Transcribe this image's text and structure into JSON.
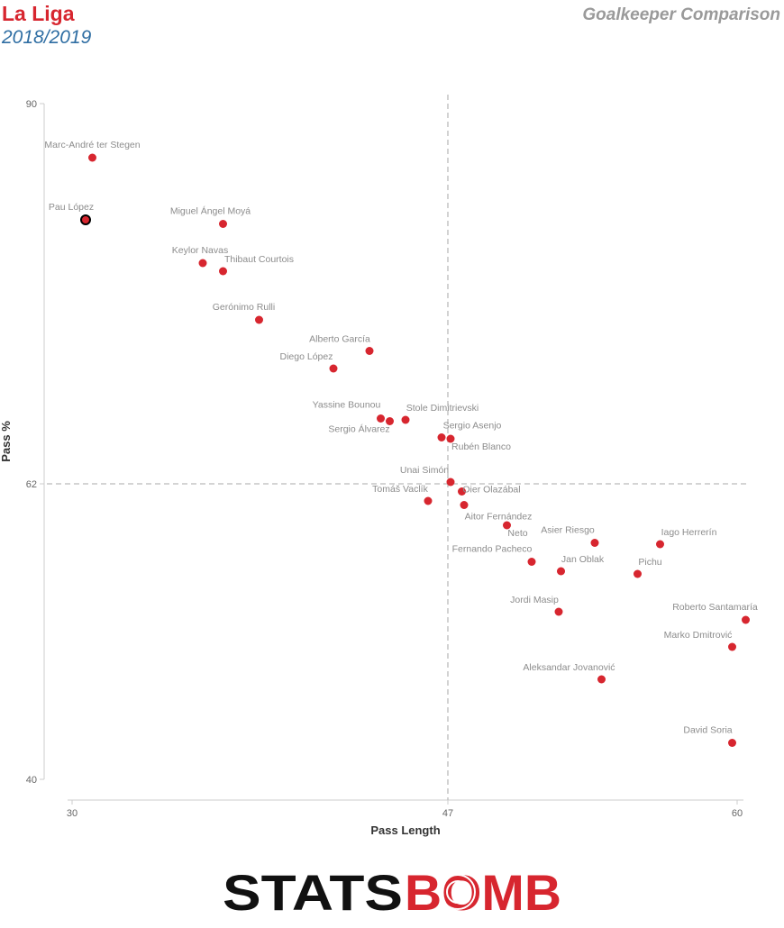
{
  "header": {
    "league": "La Liga",
    "season": "2018/2019",
    "subtitle": "Goalkeeper Comparison"
  },
  "logo": {
    "left": "STATS",
    "right": "BOMB"
  },
  "colors": {
    "accent": "#d7262f",
    "season": "#2f6ea3",
    "label": "#8c8c8c",
    "axis": "#cccccc"
  },
  "chart_data": {
    "type": "scatter",
    "title": "Goalkeeper Comparison",
    "xlabel": "Pass Length",
    "ylabel": "Pass %",
    "xlim": [
      30,
      60
    ],
    "ylim": [
      40,
      90
    ],
    "xticks": [
      30,
      47,
      60
    ],
    "yticks": [
      40,
      62,
      90
    ],
    "reference_lines": {
      "x": 47,
      "y": 62
    },
    "grid": false,
    "points": [
      {
        "name": "Marc-André ter Stegen",
        "x": 31.1,
        "y": 86.0
      },
      {
        "name": "Pau López",
        "x": 30.8,
        "y": 81.4,
        "highlight": true
      },
      {
        "name": "Miguel Ángel Moyá",
        "x": 36.9,
        "y": 81.1
      },
      {
        "name": "Keylor Navas",
        "x": 36.0,
        "y": 78.2
      },
      {
        "name": "Thibaut Courtois",
        "x": 36.9,
        "y": 77.6
      },
      {
        "name": "Gerónimo Rulli",
        "x": 38.5,
        "y": 74.0
      },
      {
        "name": "Alberto García",
        "x": 43.4,
        "y": 71.7
      },
      {
        "name": "Diego López",
        "x": 41.8,
        "y": 70.4
      },
      {
        "name": "Yassine Bounou",
        "x": 43.9,
        "y": 66.7
      },
      {
        "name": "Sergio Álvarez",
        "x": 44.3,
        "y": 66.5
      },
      {
        "name": "Stole Dimitrievski",
        "x": 45.0,
        "y": 66.6
      },
      {
        "name": "Sergio Asenjo",
        "x": 46.6,
        "y": 65.3
      },
      {
        "name": "Rubén Blanco",
        "x": 47.0,
        "y": 65.2
      },
      {
        "name": "Unai Simón",
        "x": 47.0,
        "y": 62.0
      },
      {
        "name": "Oier Olazábal",
        "x": 47.5,
        "y": 61.3
      },
      {
        "name": "Tomáš Vaclík",
        "x": 46.0,
        "y": 60.6
      },
      {
        "name": "Aitor Fernández",
        "x": 47.6,
        "y": 60.3
      },
      {
        "name": "Neto",
        "x": 49.5,
        "y": 58.8
      },
      {
        "name": "Asier Riesgo",
        "x": 53.4,
        "y": 57.5
      },
      {
        "name": "Iago Herrerín",
        "x": 56.3,
        "y": 57.4
      },
      {
        "name": "Fernando Pacheco",
        "x": 50.6,
        "y": 56.1
      },
      {
        "name": "Jan Oblak",
        "x": 51.9,
        "y": 55.4
      },
      {
        "name": "Pichu",
        "x": 55.3,
        "y": 55.2
      },
      {
        "name": "Jordi Masip",
        "x": 51.8,
        "y": 52.4
      },
      {
        "name": "Roberto Santamaría",
        "x": 60.1,
        "y": 51.8
      },
      {
        "name": "Marko Dmitrović",
        "x": 59.5,
        "y": 49.8
      },
      {
        "name": "Aleksandar Jovanović",
        "x": 53.7,
        "y": 47.4
      },
      {
        "name": "David Soria",
        "x": 59.5,
        "y": 42.7
      }
    ]
  }
}
